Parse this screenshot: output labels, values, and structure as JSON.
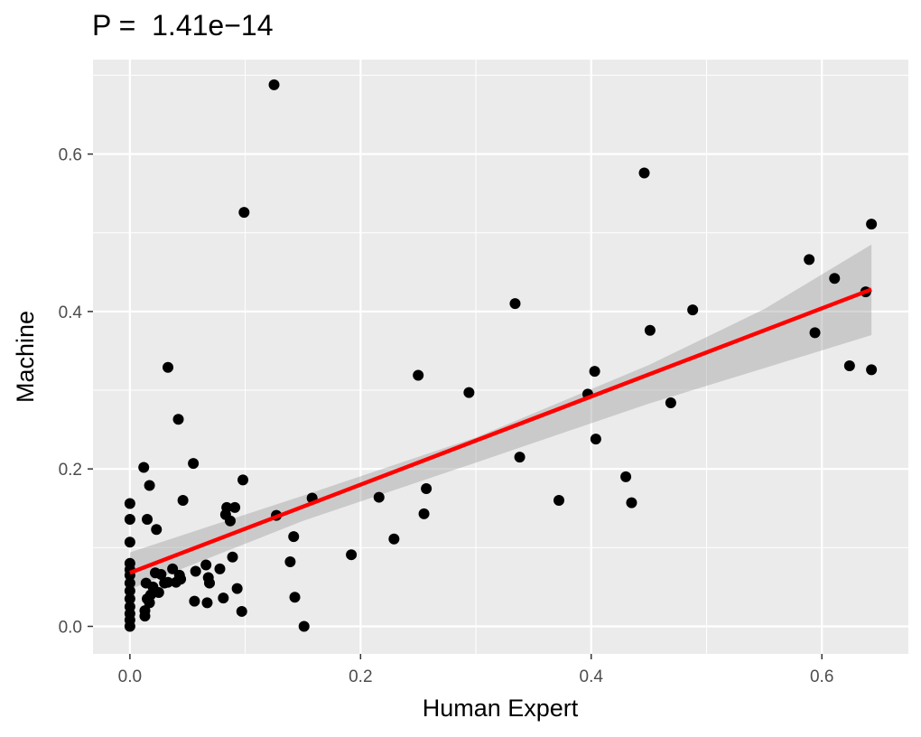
{
  "chart_data": {
    "type": "scatter",
    "title": "P =  1.41e−14",
    "xlabel": "Human Expert",
    "ylabel": "Machine",
    "xlim": [
      -0.032,
      0.675
    ],
    "ylim": [
      -0.035,
      0.72
    ],
    "x_ticks": [
      0.0,
      0.2,
      0.4,
      0.6
    ],
    "x_tick_labels": [
      "0.0",
      "0.2",
      "0.4",
      "0.6"
    ],
    "y_ticks": [
      0.0,
      0.2,
      0.4,
      0.6
    ],
    "y_tick_labels": [
      "0.0",
      "0.2",
      "0.4",
      "0.6"
    ],
    "grid": true,
    "points": [
      [
        0.0,
        0.0
      ],
      [
        0.0,
        0.008
      ],
      [
        0.0,
        0.016
      ],
      [
        0.0,
        0.025
      ],
      [
        0.0,
        0.035
      ],
      [
        0.0,
        0.045
      ],
      [
        0.0,
        0.055
      ],
      [
        0.0,
        0.065
      ],
      [
        0.0,
        0.072
      ],
      [
        0.0,
        0.08
      ],
      [
        0.0,
        0.107
      ],
      [
        0.0,
        0.136
      ],
      [
        0.0,
        0.156
      ],
      [
        0.012,
        0.202
      ],
      [
        0.015,
        0.136
      ],
      [
        0.017,
        0.179
      ],
      [
        0.023,
        0.123
      ],
      [
        0.013,
        0.02
      ],
      [
        0.013,
        0.013
      ],
      [
        0.015,
        0.035
      ],
      [
        0.017,
        0.03
      ],
      [
        0.018,
        0.04
      ],
      [
        0.02,
        0.05
      ],
      [
        0.014,
        0.055
      ],
      [
        0.022,
        0.068
      ],
      [
        0.025,
        0.043
      ],
      [
        0.027,
        0.066
      ],
      [
        0.03,
        0.055
      ],
      [
        0.033,
        0.056
      ],
      [
        0.037,
        0.073
      ],
      [
        0.04,
        0.056
      ],
      [
        0.043,
        0.065
      ],
      [
        0.044,
        0.06
      ],
      [
        0.033,
        0.329
      ],
      [
        0.042,
        0.263
      ],
      [
        0.046,
        0.16
      ],
      [
        0.055,
        0.207
      ],
      [
        0.056,
        0.032
      ],
      [
        0.057,
        0.07
      ],
      [
        0.066,
        0.078
      ],
      [
        0.067,
        0.03
      ],
      [
        0.068,
        0.062
      ],
      [
        0.069,
        0.055
      ],
      [
        0.078,
        0.073
      ],
      [
        0.081,
        0.036
      ],
      [
        0.083,
        0.142
      ],
      [
        0.084,
        0.151
      ],
      [
        0.087,
        0.134
      ],
      [
        0.089,
        0.088
      ],
      [
        0.091,
        0.151
      ],
      [
        0.093,
        0.048
      ],
      [
        0.097,
        0.019
      ],
      [
        0.098,
        0.186
      ],
      [
        0.099,
        0.526
      ],
      [
        0.125,
        0.688
      ],
      [
        0.127,
        0.141
      ],
      [
        0.139,
        0.082
      ],
      [
        0.142,
        0.114
      ],
      [
        0.143,
        0.037
      ],
      [
        0.151,
        0.0
      ],
      [
        0.158,
        0.163
      ],
      [
        0.192,
        0.091
      ],
      [
        0.216,
        0.164
      ],
      [
        0.229,
        0.111
      ],
      [
        0.25,
        0.319
      ],
      [
        0.255,
        0.143
      ],
      [
        0.257,
        0.175
      ],
      [
        0.294,
        0.297
      ],
      [
        0.334,
        0.41
      ],
      [
        0.338,
        0.215
      ],
      [
        0.372,
        0.16
      ],
      [
        0.397,
        0.295
      ],
      [
        0.403,
        0.324
      ],
      [
        0.404,
        0.238
      ],
      [
        0.43,
        0.19
      ],
      [
        0.435,
        0.157
      ],
      [
        0.446,
        0.576
      ],
      [
        0.451,
        0.376
      ],
      [
        0.469,
        0.284
      ],
      [
        0.488,
        0.402
      ],
      [
        0.589,
        0.466
      ],
      [
        0.594,
        0.373
      ],
      [
        0.611,
        0.442
      ],
      [
        0.624,
        0.331
      ],
      [
        0.638,
        0.425
      ],
      [
        0.643,
        0.511
      ],
      [
        0.643,
        0.326
      ]
    ],
    "fit": {
      "intercept": 0.068,
      "slope": 0.56,
      "x_range": [
        0.0,
        0.643
      ]
    },
    "confidence_band": [
      [
        0.0,
        0.047,
        0.094
      ],
      [
        0.15,
        0.134,
        0.166
      ],
      [
        0.3,
        0.208,
        0.24
      ],
      [
        0.45,
        0.283,
        0.332
      ],
      [
        0.55,
        0.328,
        0.403
      ],
      [
        0.643,
        0.37,
        0.485
      ]
    ],
    "colors": {
      "panel": "#ebebeb",
      "grid_major": "#ffffff",
      "points": "#000000",
      "fit_line": "#ff0000",
      "band": "#999999"
    }
  }
}
